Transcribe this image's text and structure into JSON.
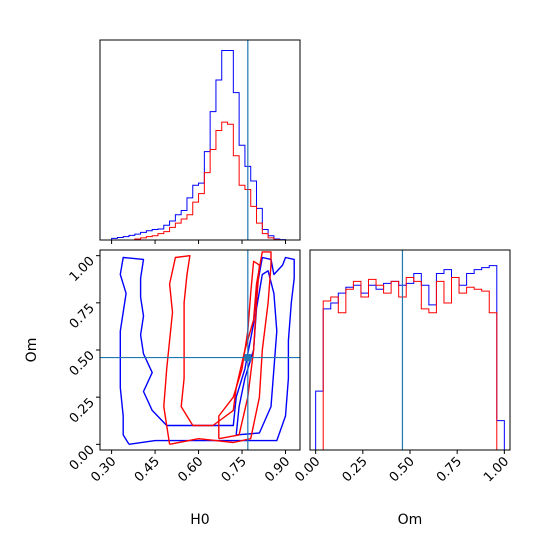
{
  "chart_data": [
    {
      "type": "histogram",
      "panel": "H0 marginal",
      "xlim": [
        0.26,
        0.95
      ],
      "bin_edges": [
        0.3,
        0.32,
        0.34,
        0.36,
        0.38,
        0.4,
        0.42,
        0.44,
        0.46,
        0.48,
        0.5,
        0.52,
        0.54,
        0.56,
        0.58,
        0.6,
        0.62,
        0.64,
        0.66,
        0.68,
        0.7,
        0.72,
        0.74,
        0.76,
        0.78,
        0.8,
        0.82,
        0.84,
        0.86,
        0.88,
        0.9
      ],
      "series": [
        {
          "color": "#0000ff",
          "values": [
            0.008,
            0.012,
            0.016,
            0.022,
            0.028,
            0.036,
            0.044,
            0.05,
            0.052,
            0.07,
            0.09,
            0.12,
            0.14,
            0.2,
            0.26,
            0.27,
            0.42,
            0.61,
            0.76,
            0.9,
            0.9,
            0.7,
            0.45,
            0.35,
            0.28,
            0.15,
            0.05,
            0.02,
            0.005,
            0.002
          ]
        },
        {
          "color": "#ff0000",
          "values": [
            0.0,
            0.0,
            0.0,
            0.0,
            0.005,
            0.01,
            0.016,
            0.02,
            0.03,
            0.04,
            0.06,
            0.08,
            0.1,
            0.12,
            0.18,
            0.22,
            0.32,
            0.43,
            0.52,
            0.56,
            0.55,
            0.4,
            0.26,
            0.24,
            0.16,
            0.08,
            0.03,
            0.01,
            0.002,
            0.0
          ]
        }
      ],
      "truth_line": 0.77
    },
    {
      "type": "contour",
      "panel": "H0 vs Om",
      "xlabel": "H0",
      "ylabel": "Om",
      "xlim": [
        0.26,
        0.95
      ],
      "ylim": [
        -0.03,
        1.03
      ],
      "xticks": [
        "0.30",
        "0.45",
        "0.60",
        "0.75",
        "0.90"
      ],
      "yticks": [
        "0.00",
        "0.25",
        "0.50",
        "0.75",
        "1.00"
      ],
      "series": [
        {
          "color": "#0000ff",
          "level": "outer",
          "points": [
            [
              0.36,
              0.0
            ],
            [
              0.45,
              0.02
            ],
            [
              0.58,
              0.02
            ],
            [
              0.71,
              0.02
            ],
            [
              0.87,
              0.02
            ],
            [
              0.9,
              0.15
            ],
            [
              0.91,
              0.35
            ],
            [
              0.91,
              0.55
            ],
            [
              0.92,
              0.75
            ],
            [
              0.93,
              0.88
            ],
            [
              0.93,
              0.98
            ],
            [
              0.9,
              0.99
            ],
            [
              0.89,
              0.95
            ],
            [
              0.86,
              0.9
            ],
            [
              0.85,
              0.98
            ],
            [
              0.82,
              0.99
            ],
            [
              0.8,
              0.82
            ],
            [
              0.79,
              0.64
            ],
            [
              0.76,
              0.4
            ],
            [
              0.73,
              0.25
            ],
            [
              0.72,
              0.1
            ],
            [
              0.59,
              0.1
            ],
            [
              0.49,
              0.1
            ],
            [
              0.44,
              0.18
            ],
            [
              0.41,
              0.28
            ],
            [
              0.44,
              0.38
            ],
            [
              0.41,
              0.48
            ],
            [
              0.4,
              0.58
            ],
            [
              0.41,
              0.68
            ],
            [
              0.4,
              0.78
            ],
            [
              0.4,
              0.88
            ],
            [
              0.41,
              0.98
            ],
            [
              0.34,
              0.99
            ],
            [
              0.33,
              0.9
            ],
            [
              0.35,
              0.8
            ],
            [
              0.33,
              0.6
            ],
            [
              0.33,
              0.45
            ],
            [
              0.33,
              0.3
            ],
            [
              0.34,
              0.15
            ],
            [
              0.34,
              0.05
            ],
            [
              0.36,
              0.0
            ]
          ]
        },
        {
          "color": "#0000ff",
          "level": "inner",
          "points": [
            [
              0.73,
              0.05
            ],
            [
              0.81,
              0.06
            ],
            [
              0.85,
              0.2
            ],
            [
              0.86,
              0.4
            ],
            [
              0.87,
              0.6
            ],
            [
              0.86,
              0.8
            ],
            [
              0.84,
              0.92
            ],
            [
              0.82,
              0.9
            ],
            [
              0.8,
              0.72
            ],
            [
              0.79,
              0.5
            ],
            [
              0.76,
              0.35
            ],
            [
              0.74,
              0.2
            ],
            [
              0.73,
              0.05
            ]
          ]
        },
        {
          "color": "#ff0000",
          "level": "outer",
          "points": [
            [
              0.5,
              0.0
            ],
            [
              0.6,
              0.03
            ],
            [
              0.72,
              0.01
            ],
            [
              0.78,
              0.03
            ],
            [
              0.81,
              0.25
            ],
            [
              0.82,
              0.5
            ],
            [
              0.84,
              0.75
            ],
            [
              0.85,
              0.95
            ],
            [
              0.85,
              1.02
            ],
            [
              0.82,
              1.02
            ],
            [
              0.8,
              0.85
            ],
            [
              0.79,
              0.66
            ],
            [
              0.76,
              0.5
            ],
            [
              0.73,
              0.3
            ],
            [
              0.72,
              0.18
            ],
            [
              0.65,
              0.1
            ],
            [
              0.58,
              0.1
            ],
            [
              0.54,
              0.2
            ],
            [
              0.55,
              0.35
            ],
            [
              0.55,
              0.55
            ],
            [
              0.55,
              0.75
            ],
            [
              0.56,
              0.9
            ],
            [
              0.57,
              1.0
            ],
            [
              0.52,
              0.99
            ],
            [
              0.5,
              0.85
            ],
            [
              0.51,
              0.7
            ],
            [
              0.5,
              0.55
            ],
            [
              0.49,
              0.4
            ],
            [
              0.48,
              0.2
            ],
            [
              0.5,
              0.0
            ]
          ]
        },
        {
          "color": "#ff0000",
          "level": "inner",
          "points": [
            [
              0.67,
              0.03
            ],
            [
              0.74,
              0.05
            ],
            [
              0.77,
              0.25
            ],
            [
              0.79,
              0.5
            ],
            [
              0.8,
              0.75
            ],
            [
              0.81,
              0.95
            ],
            [
              0.79,
              0.97
            ],
            [
              0.78,
              0.8
            ],
            [
              0.77,
              0.6
            ],
            [
              0.75,
              0.4
            ],
            [
              0.72,
              0.25
            ],
            [
              0.67,
              0.15
            ],
            [
              0.67,
              0.03
            ]
          ]
        }
      ],
      "truth_point": [
        0.77,
        0.46
      ]
    },
    {
      "type": "histogram",
      "panel": "Om marginal",
      "xlabel": "Om",
      "xlim": [
        -0.03,
        1.03
      ],
      "xticks": [
        "0.00",
        "0.25",
        "0.50",
        "0.75",
        "1.00"
      ],
      "bin_edges": [
        0.0,
        0.04,
        0.08,
        0.12,
        0.16,
        0.2,
        0.24,
        0.28,
        0.32,
        0.36,
        0.4,
        0.44,
        0.48,
        0.52,
        0.56,
        0.6,
        0.64,
        0.68,
        0.72,
        0.76,
        0.8,
        0.84,
        0.88,
        0.92,
        0.96,
        1.0
      ],
      "series": [
        {
          "color": "#0000ff",
          "values": [
            0.3,
            0.72,
            0.75,
            0.8,
            0.83,
            0.84,
            0.8,
            0.84,
            0.82,
            0.85,
            0.86,
            0.84,
            0.85,
            0.9,
            0.84,
            0.74,
            0.9,
            0.92,
            0.88,
            0.84,
            0.9,
            0.92,
            0.93,
            0.94,
            0.15
          ]
        },
        {
          "color": "#ff0000",
          "values": [
            0.0,
            0.76,
            0.78,
            0.7,
            0.82,
            0.86,
            0.78,
            0.87,
            0.84,
            0.8,
            0.86,
            0.78,
            0.88,
            0.86,
            0.72,
            0.7,
            0.86,
            0.75,
            0.88,
            0.8,
            0.83,
            0.82,
            0.81,
            0.7,
            0.0
          ]
        }
      ],
      "truth_line": 0.46
    }
  ],
  "colors": {
    "series_a": "#0000ff",
    "series_b": "#ff0000",
    "truth": "#1f77b4"
  }
}
